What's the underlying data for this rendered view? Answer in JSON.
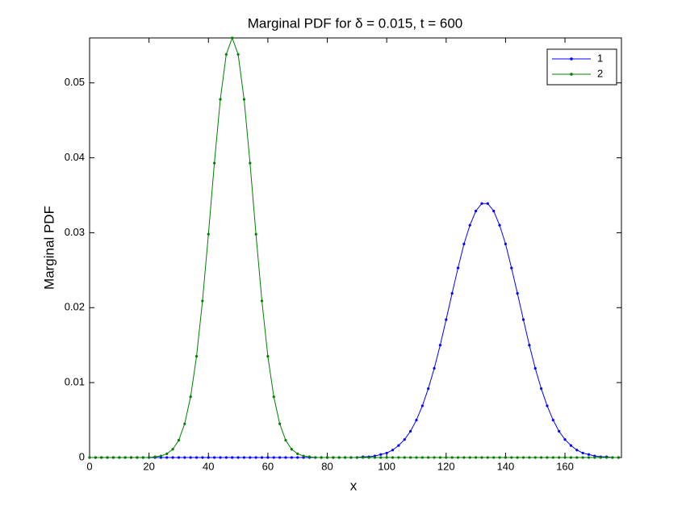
{
  "chart_data": {
    "type": "line",
    "title": "Marginal PDF for δ = 0.015, t = 600",
    "x_label": "x",
    "y_label": "Marginal PDF",
    "x": [
      0,
      2,
      4,
      6,
      8,
      10,
      12,
      14,
      16,
      18,
      20,
      22,
      24,
      26,
      28,
      30,
      32,
      34,
      36,
      38,
      40,
      42,
      44,
      46,
      48,
      50,
      52,
      54,
      56,
      58,
      60,
      62,
      64,
      66,
      68,
      70,
      72,
      74,
      76,
      78,
      80,
      82,
      84,
      86,
      88,
      90,
      92,
      94,
      96,
      98,
      100,
      102,
      104,
      106,
      108,
      110,
      112,
      114,
      116,
      118,
      120,
      122,
      124,
      126,
      128,
      130,
      132,
      134,
      136,
      138,
      140,
      142,
      144,
      146,
      148,
      150,
      152,
      154,
      156,
      158,
      160,
      162,
      164,
      166,
      168,
      170,
      172,
      174,
      176,
      178
    ],
    "series": [
      {
        "name": "1",
        "color": "#0000ff",
        "values": [
          0,
          0,
          0,
          0,
          0,
          0,
          0,
          0,
          0,
          0,
          0,
          0,
          0,
          0,
          0,
          0,
          0,
          0,
          0,
          0,
          0,
          0,
          0,
          0,
          0,
          0,
          0,
          0,
          0,
          0,
          0,
          0,
          0,
          0,
          0,
          0,
          0,
          0,
          0,
          0,
          0,
          0,
          0,
          0,
          0,
          0,
          0.0001,
          0.0001,
          0.0002,
          0.0004,
          0.0006,
          0.001,
          0.0016,
          0.0024,
          0.0035,
          0.005,
          0.0069,
          0.0092,
          0.0119,
          0.015,
          0.0184,
          0.0219,
          0.0253,
          0.0285,
          0.031,
          0.0329,
          0.0339,
          0.0339,
          0.0329,
          0.031,
          0.0285,
          0.0253,
          0.0219,
          0.0184,
          0.015,
          0.0119,
          0.0092,
          0.0069,
          0.005,
          0.0035,
          0.0024,
          0.0016,
          0.001,
          0.0006,
          0.0004,
          0.0002,
          0.0001,
          0.0001,
          0,
          0
        ]
      },
      {
        "name": "2",
        "color": "#007f00",
        "values": [
          0,
          0,
          0,
          0,
          0,
          0,
          0,
          0,
          0,
          0,
          0,
          0.0001,
          0.0002,
          0.0005,
          0.0011,
          0.0023,
          0.0045,
          0.0081,
          0.0135,
          0.0209,
          0.0298,
          0.0393,
          0.0478,
          0.0538,
          0.056,
          0.0538,
          0.0478,
          0.0393,
          0.0298,
          0.0209,
          0.0135,
          0.0081,
          0.0045,
          0.0023,
          0.0011,
          0.0005,
          0.0002,
          0.0001,
          0,
          0,
          0,
          0,
          0,
          0,
          0,
          0,
          0,
          0,
          0,
          0,
          0,
          0,
          0,
          0,
          0,
          0,
          0,
          0,
          0,
          0,
          0,
          0,
          0,
          0,
          0,
          0,
          0,
          0,
          0,
          0,
          0,
          0,
          0,
          0,
          0,
          0,
          0,
          0,
          0,
          0,
          0,
          0,
          0,
          0,
          0,
          0,
          0,
          0,
          0,
          0
        ]
      }
    ],
    "xlim": [
      0,
      179
    ],
    "xticks": [
      0,
      20,
      40,
      60,
      80,
      100,
      120,
      140,
      160
    ],
    "ylim": [
      0,
      0.056
    ],
    "yticks": [
      0,
      0.01,
      0.02,
      0.03,
      0.04,
      0.05
    ],
    "legend": "northeast",
    "grid": false
  }
}
